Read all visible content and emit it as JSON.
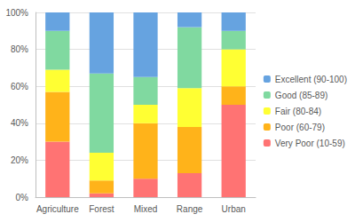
{
  "chart_data": {
    "type": "bar",
    "stacked": true,
    "categories": [
      "Agriculture",
      "Forest",
      "Mixed",
      "Range",
      "Urban"
    ],
    "series": [
      {
        "name": "Very Poor (10-59)",
        "color": "#ff7373",
        "values": [
          30,
          2,
          10,
          13,
          50
        ]
      },
      {
        "name": "Poor (60-79)",
        "color": "#ffb31a",
        "values": [
          27,
          7,
          30,
          25,
          10
        ]
      },
      {
        "name": "Fair (80-84)",
        "color": "#ffff33",
        "values": [
          12,
          15,
          10,
          21,
          20
        ]
      },
      {
        "name": "Good (85-89)",
        "color": "#80d9a0",
        "values": [
          21,
          43,
          15,
          33,
          10
        ]
      },
      {
        "name": "Excellent (90-100)",
        "color": "#66a3e0",
        "values": [
          10,
          33,
          35,
          8,
          10
        ]
      }
    ],
    "ylim": [
      0,
      100
    ],
    "yticks": [
      {
        "value": 0,
        "label": "0%"
      },
      {
        "value": 20,
        "label": "20%"
      },
      {
        "value": 40,
        "label": "40%"
      },
      {
        "value": 60,
        "label": "60%"
      },
      {
        "value": 80,
        "label": "80%"
      },
      {
        "value": 100,
        "label": "100%"
      }
    ],
    "grid": true,
    "legend": "right"
  }
}
